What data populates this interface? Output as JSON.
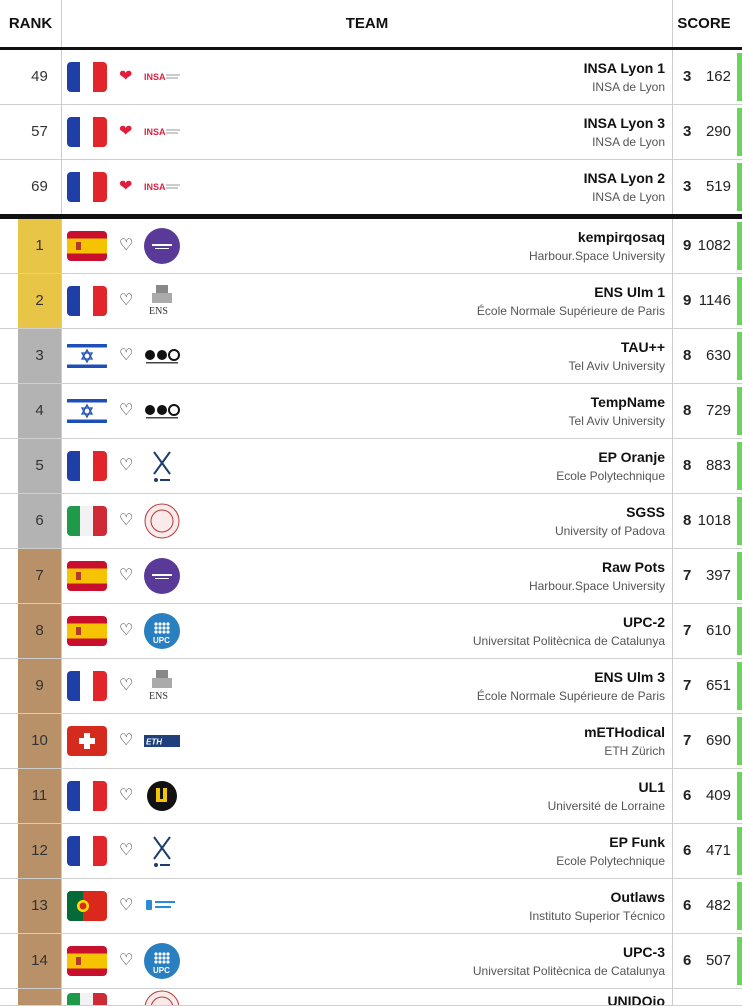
{
  "header": {
    "rank": "RANK",
    "team": "TEAM",
    "score": "SCORE"
  },
  "colors": {
    "gold": "#e8c547",
    "silver": "#b3b3b3",
    "bronze": "#b99168",
    "heart_red": "#e01e3c",
    "progress_green": "#6dd35f"
  },
  "favorites": [
    {
      "rank": "49",
      "flag": "france",
      "logo": "insa-logo",
      "team": "INSA Lyon 1",
      "university": "INSA de Lyon",
      "solved": "3",
      "penalty": "162"
    },
    {
      "rank": "57",
      "flag": "france",
      "logo": "insa-logo",
      "team": "INSA Lyon 3",
      "university": "INSA de Lyon",
      "solved": "3",
      "penalty": "290"
    },
    {
      "rank": "69",
      "flag": "france",
      "logo": "insa-logo",
      "team": "INSA Lyon 2",
      "university": "INSA de Lyon",
      "solved": "3",
      "penalty": "519"
    }
  ],
  "rows": [
    {
      "rank": "1",
      "medal": "gold",
      "flag": "spain",
      "logo": "harbour-space-logo",
      "team": "kempirqosaq",
      "university": "Harbour.Space University",
      "solved": "9",
      "penalty": "1082"
    },
    {
      "rank": "2",
      "medal": "gold",
      "flag": "france",
      "logo": "ens-logo",
      "team": "ENS Ulm 1",
      "university": "École Normale Supérieure de Paris",
      "solved": "9",
      "penalty": "1146"
    },
    {
      "rank": "3",
      "medal": "silver",
      "flag": "israel",
      "logo": "tau-logo",
      "team": "TAU++",
      "university": "Tel Aviv University",
      "solved": "8",
      "penalty": "630"
    },
    {
      "rank": "4",
      "medal": "silver",
      "flag": "israel",
      "logo": "tau-logo",
      "team": "TempName",
      "university": "Tel Aviv University",
      "solved": "8",
      "penalty": "729"
    },
    {
      "rank": "5",
      "medal": "silver",
      "flag": "france",
      "logo": "polytechnique-logo",
      "team": "EP Oranje",
      "university": "Ecole Polytechnique",
      "solved": "8",
      "penalty": "883"
    },
    {
      "rank": "6",
      "medal": "silver",
      "flag": "italy",
      "logo": "padova-logo",
      "team": "SGSS",
      "university": "University of Padova",
      "solved": "8",
      "penalty": "1018"
    },
    {
      "rank": "7",
      "medal": "bronze",
      "flag": "spain",
      "logo": "harbour-space-logo",
      "team": "Raw Pots",
      "university": "Harbour.Space University",
      "solved": "7",
      "penalty": "397"
    },
    {
      "rank": "8",
      "medal": "bronze",
      "flag": "spain",
      "logo": "upc-logo",
      "team": "UPC-2",
      "university": "Universitat Politècnica de Catalunya",
      "solved": "7",
      "penalty": "610"
    },
    {
      "rank": "9",
      "medal": "bronze",
      "flag": "france",
      "logo": "ens-logo",
      "team": "ENS Ulm 3",
      "university": "École Normale Supérieure de Paris",
      "solved": "7",
      "penalty": "651"
    },
    {
      "rank": "10",
      "medal": "bronze",
      "flag": "switzerland",
      "logo": "eth-logo",
      "team": "mETHodical",
      "university": "ETH Zürich",
      "solved": "7",
      "penalty": "690"
    },
    {
      "rank": "11",
      "medal": "bronze",
      "flag": "france",
      "logo": "lorraine-logo",
      "team": "UL1",
      "university": "Université de Lorraine",
      "solved": "6",
      "penalty": "409"
    },
    {
      "rank": "12",
      "medal": "bronze",
      "flag": "france",
      "logo": "polytechnique-logo",
      "team": "EP Funk",
      "university": "Ecole Polytechnique",
      "solved": "6",
      "penalty": "471"
    },
    {
      "rank": "13",
      "medal": "bronze",
      "flag": "portugal",
      "logo": "tecnico-logo",
      "team": "Outlaws",
      "university": "Instituto Superior Técnico",
      "solved": "6",
      "penalty": "482"
    },
    {
      "rank": "14",
      "medal": "bronze",
      "flag": "spain",
      "logo": "upc-logo",
      "team": "UPC-3",
      "university": "Universitat Politècnica de Catalunya",
      "solved": "6",
      "penalty": "507"
    }
  ],
  "partial_row": {
    "team": "UNIDOjo",
    "flag": "italy",
    "logo": "padova-logo"
  }
}
